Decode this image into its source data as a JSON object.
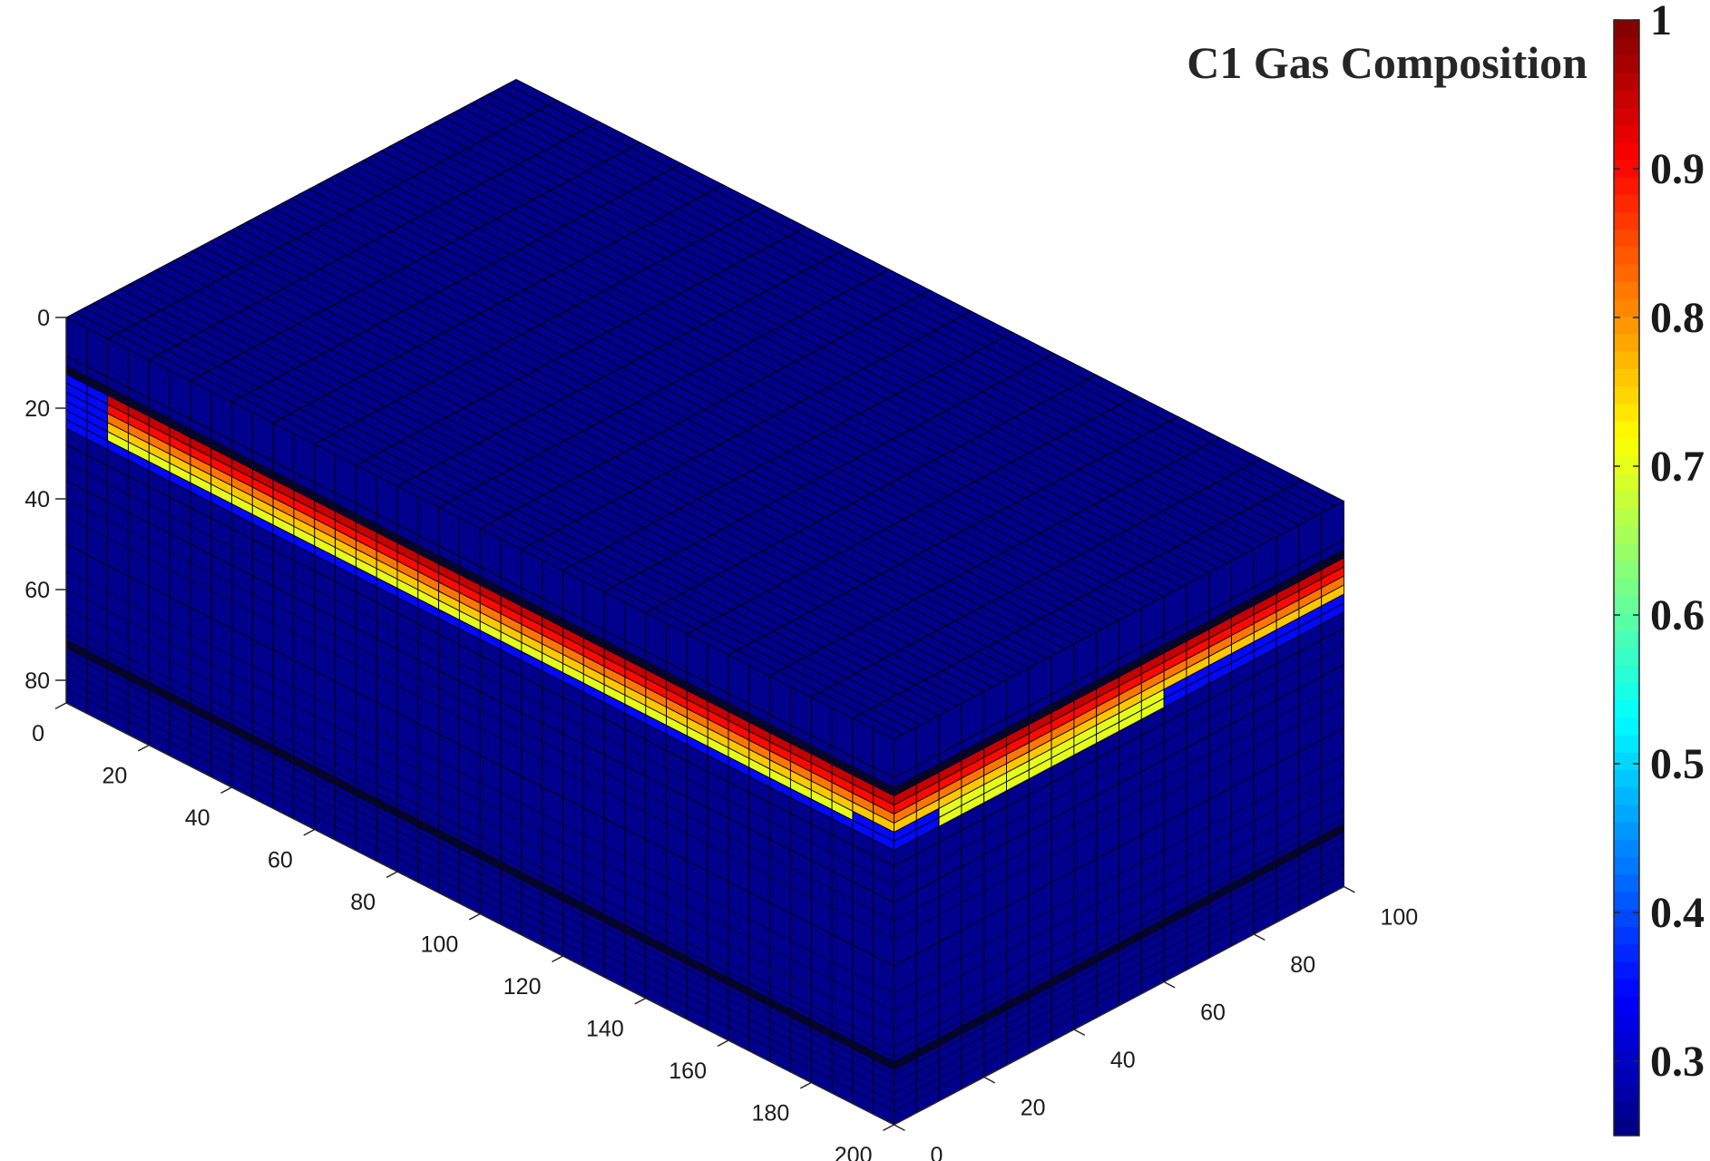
{
  "chart_data": {
    "type": "heatmap",
    "title": "C1 Gas Composition",
    "xlabel": "",
    "ylabel": "",
    "zlabel": "",
    "x_axis": {
      "range": [
        0,
        200
      ],
      "ticks": [
        "0",
        "20",
        "40",
        "60",
        "80",
        "100",
        "120",
        "140",
        "160",
        "180",
        "200"
      ]
    },
    "y_axis": {
      "range": [
        0,
        100
      ],
      "ticks": [
        "0",
        "20",
        "40",
        "60",
        "80",
        "100"
      ]
    },
    "z_axis": {
      "range": [
        0,
        85
      ],
      "reversed": true,
      "ticks": [
        "0",
        "20",
        "40",
        "60",
        "80"
      ]
    },
    "colorbar": {
      "colormap": "jet",
      "range": [
        0.25,
        1
      ],
      "ticks": [
        "0.3",
        "0.4",
        "0.5",
        "0.6",
        "0.7",
        "0.8",
        "0.9",
        "1"
      ],
      "tick_values": [
        0.3,
        0.4,
        0.5,
        0.6,
        0.7,
        0.8,
        0.9,
        1.0
      ]
    },
    "depth_profile": {
      "layer_depths": [
        8.5,
        12.5,
        14.5,
        16.5,
        18.5,
        20.5,
        22.5,
        24.5,
        28,
        36,
        50,
        72
      ],
      "layer_values": [
        0.26,
        0.26,
        0.95,
        0.9,
        0.82,
        0.76,
        0.7,
        0.35,
        0.26,
        0.26,
        0.26,
        0.26
      ],
      "notes": "Gas front between depth ~12 and ~24; cells near x=0-10 and y=40-100 remain low"
    },
    "background_value": 0.26
  }
}
